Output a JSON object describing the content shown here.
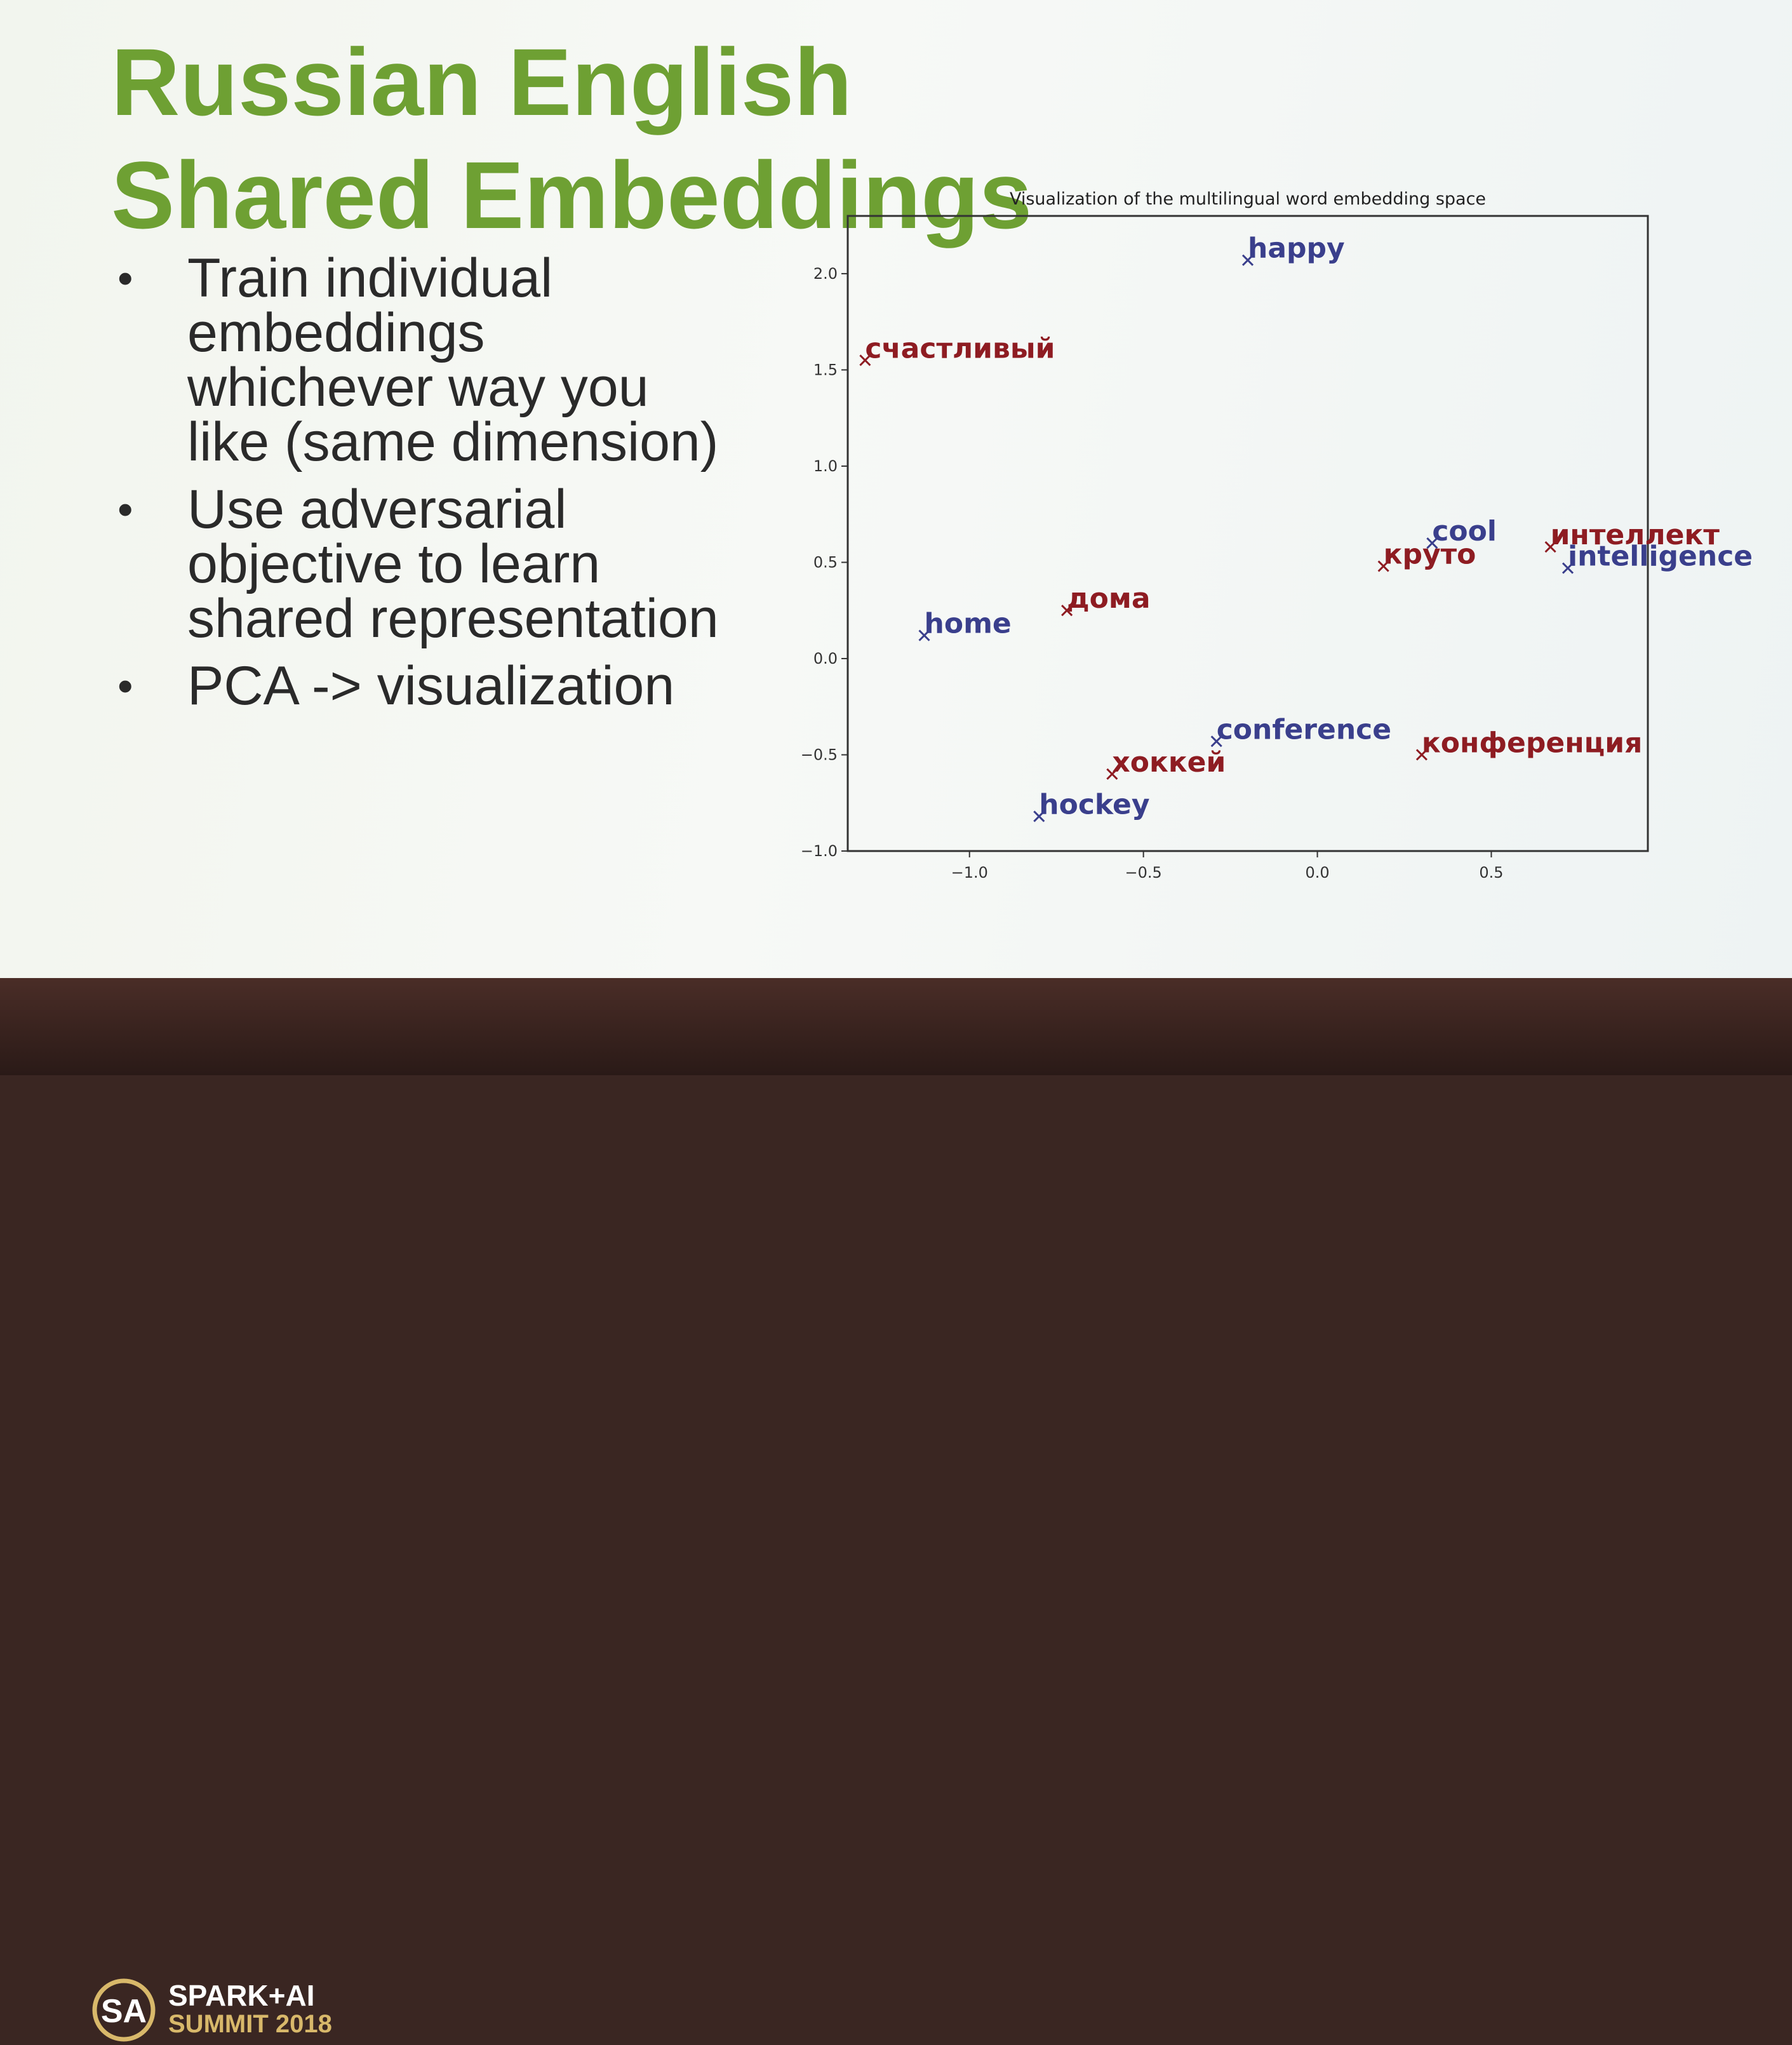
{
  "slide": {
    "title": "Russian English Shared Embeddings",
    "bullets": [
      "Train individual embeddings whichever way you like (same dimension)",
      "Use adversarial objective to learn shared representation",
      "PCA -> visualization"
    ],
    "bullet_symbol": "•"
  },
  "branding": {
    "line1": "SPARK+AI",
    "line2": "SUMMIT 2018"
  },
  "colors": {
    "title_green": "#6ea033",
    "english_blue": "#3a3f8c",
    "russian_red": "#8e1c22"
  },
  "chart_data": {
    "type": "scatter",
    "title": "Visualization of the multilingual word embedding space",
    "xlabel": "",
    "ylabel": "",
    "xlim": [
      -1.35,
      0.95
    ],
    "ylim": [
      -1.0,
      2.3
    ],
    "xticks": [
      -1.0,
      -0.5,
      0.0,
      0.5
    ],
    "xtick_labels": [
      "−1.0",
      "−0.5",
      "0.0",
      "0.5"
    ],
    "yticks": [
      -1.0,
      -0.5,
      0.0,
      0.5,
      1.0,
      1.5,
      2.0
    ],
    "ytick_labels": [
      "−1.0",
      "−0.5",
      "0.0",
      "0.5",
      "1.0",
      "1.5",
      "2.0"
    ],
    "grid": false,
    "points": [
      {
        "label": "happy",
        "x": -0.2,
        "y": 2.07,
        "lang": "en"
      },
      {
        "label": "счастливый",
        "x": -1.3,
        "y": 1.55,
        "lang": "ru"
      },
      {
        "label": "cool",
        "x": 0.33,
        "y": 0.6,
        "lang": "en"
      },
      {
        "label": "круто",
        "x": 0.19,
        "y": 0.48,
        "lang": "ru"
      },
      {
        "label": "интеллект",
        "x": 0.67,
        "y": 0.58,
        "lang": "ru"
      },
      {
        "label": "intelligence",
        "x": 0.72,
        "y": 0.47,
        "lang": "en"
      },
      {
        "label": "дома",
        "x": -0.72,
        "y": 0.25,
        "lang": "ru"
      },
      {
        "label": "home",
        "x": -1.13,
        "y": 0.12,
        "lang": "en"
      },
      {
        "label": "conference",
        "x": -0.29,
        "y": -0.43,
        "lang": "en"
      },
      {
        "label": "конференция",
        "x": 0.3,
        "y": -0.5,
        "lang": "ru"
      },
      {
        "label": "хоккей",
        "x": -0.59,
        "y": -0.6,
        "lang": "ru"
      },
      {
        "label": "hockey",
        "x": -0.8,
        "y": -0.82,
        "lang": "en"
      }
    ]
  }
}
